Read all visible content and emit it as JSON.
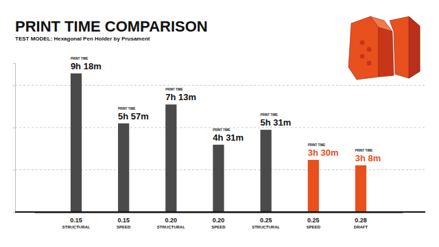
{
  "chart_data": {
    "type": "bar",
    "title": "PRINT TIME COMPARISON",
    "subtitle": "TEST MODEL: Hexagonal Pen Holder by Prusament",
    "annotation": "PRINT TIME",
    "categories": [
      "0.15\nSTRUCTURAL",
      "0.15\nSPEED",
      "0.20\nSTRUCTURAL",
      "0.20\nSPEED",
      "0.25\nSTRUCTURAL",
      "0.25\nSPEED",
      "0.28\nDRAFT"
    ],
    "values": [
      558,
      357,
      433,
      271,
      331,
      210,
      188
    ],
    "value_labels": [
      "9h 18m",
      "5h 57m",
      "7h 13m",
      "4h 31m",
      "5h 31m",
      "3h 30m",
      "3h 8m"
    ],
    "colors": [
      "#4a4a4a",
      "#4a4a4a",
      "#4a4a4a",
      "#4a4a4a",
      "#4a4a4a",
      "#e8501e",
      "#e8501e"
    ],
    "ylim": [
      0,
      600
    ],
    "yticks": [
      0,
      170,
      340,
      510
    ],
    "grid": true,
    "data_labels": true,
    "tick_labels": "x"
  }
}
